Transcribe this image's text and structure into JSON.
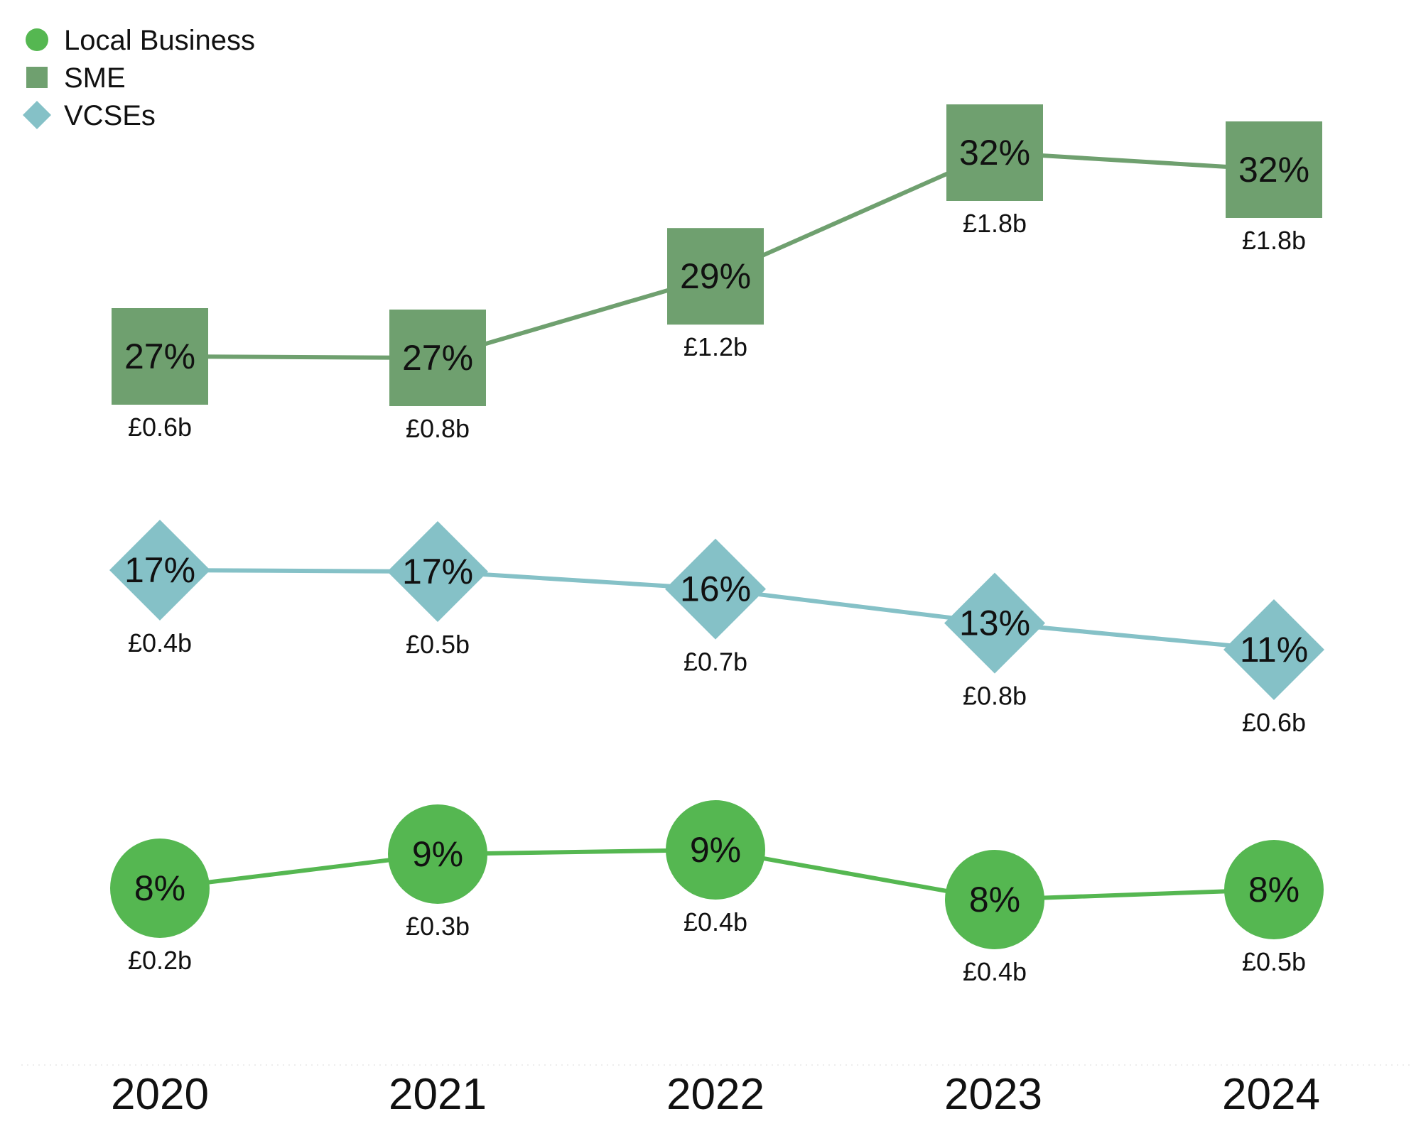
{
  "chart_data": {
    "type": "line",
    "categories": [
      "2020",
      "2021",
      "2022",
      "2023",
      "2024"
    ],
    "series": [
      {
        "name": "SME",
        "marker": "square",
        "color": "#6fa06f",
        "percent_labels": [
          "27%",
          "27%",
          "29%",
          "32%",
          "32%"
        ],
        "amount_labels": [
          "£0.6b",
          "£0.8b",
          "£1.2b",
          "£1.8b",
          "£1.8b"
        ],
        "percent_values": [
          27,
          27,
          29,
          32,
          32
        ],
        "amount_values": [
          0.6,
          0.8,
          1.2,
          1.8,
          1.8
        ]
      },
      {
        "name": "VCSEs",
        "marker": "diamond",
        "color": "#85c1c7",
        "percent_labels": [
          "17%",
          "17%",
          "16%",
          "13%",
          "11%"
        ],
        "amount_labels": [
          "£0.4b",
          "£0.5b",
          "£0.7b",
          "£0.8b",
          "£0.6b"
        ],
        "percent_values": [
          17,
          17,
          16,
          13,
          11
        ],
        "amount_values": [
          0.4,
          0.5,
          0.7,
          0.8,
          0.6
        ]
      },
      {
        "name": "Local Business",
        "marker": "circle",
        "color": "#55b751",
        "percent_labels": [
          "8%",
          "9%",
          "9%",
          "8%",
          "8%"
        ],
        "amount_labels": [
          "£0.2b",
          "£0.3b",
          "£0.4b",
          "£0.4b",
          "£0.5b"
        ],
        "percent_values": [
          8,
          9,
          9,
          8,
          8
        ],
        "amount_values": [
          0.2,
          0.3,
          0.4,
          0.4,
          0.5
        ]
      }
    ],
    "legend": {
      "position": "top-left",
      "items": [
        {
          "label": "Local Business",
          "marker": "circle",
          "color": "#55b751"
        },
        {
          "label": "SME",
          "marker": "square",
          "color": "#6fa06f"
        },
        {
          "label": "VCSEs",
          "marker": "diamond",
          "color": "#85c1c7"
        }
      ]
    },
    "xlabel": "",
    "ylabel": "",
    "grid": false
  }
}
